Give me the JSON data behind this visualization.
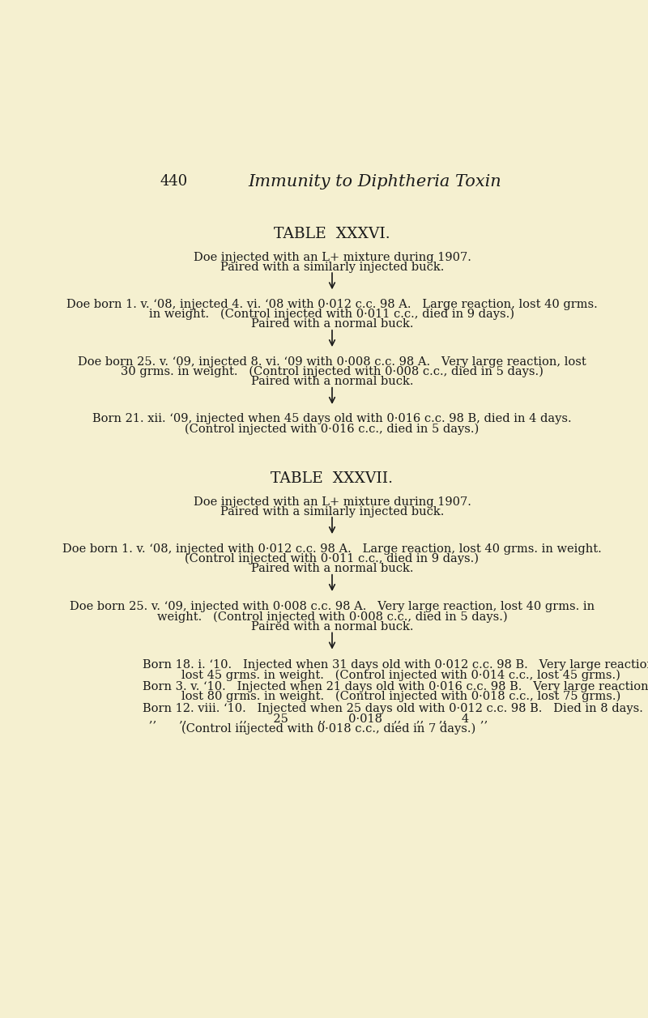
{
  "background_color": "#f5f0d0",
  "page_number": "440",
  "page_title": "Immunity to Diphtheria Toxin",
  "table36_title": "TABLE  XXXVI.",
  "table36_intro_line1": "Doe injected with an L+ mixture during 1907.",
  "table36_intro_line2": "Paired with a similarly injected buck.",
  "table36_block1_line1": "Doe born 1. v. ‘08, injected 4. vi. ‘08 with 0·012 c.c. 98 A.   Large reaction, lost 40 grms.",
  "table36_block1_line2": "in weight.   (Control injected with 0·011 c.c., died in 9 days.)",
  "table36_block1_line3": "Paired with a normal buck.",
  "table36_block2_line1": "Doe born 25. v. ‘09, injected 8. vi. ‘09 with 0·008 c.c. 98 A.   Very large reaction, lost",
  "table36_block2_line2": "30 grms. in weight.   (Control injected with 0·008 c.c., died in 5 days.)",
  "table36_block2_line3": "Paired with a normal buck.",
  "table36_block3_line1": "Born 21. xii. ‘09, injected when 45 days old with 0·016 c.c. 98 B, died in 4 days.",
  "table36_block3_line2": "(Control injected with 0·016 c.c., died in 5 days.)",
  "table37_title": "TABLE  XXXVII.",
  "table37_intro_line1": "Doe injected with an L+ mixture during 1907.",
  "table37_intro_line2": "Paired with a similarly injected buck.",
  "table37_block1_line1": "Doe born 1. v. ‘08, injected with 0·012 c.c. 98 A.   Large reaction, lost 40 grms. in weight.",
  "table37_block1_line2": "(Control injected with 0·011 c.c., died in 9 days.)",
  "table37_block1_line3": "Paired with a normal buck.",
  "table37_block2_line1": "Doe born 25. v. ‘09, injected with 0·008 c.c. 98 A.   Very large reaction, lost 40 grms. in",
  "table37_block2_line2": "weight.   (Control injected with 0·008 c.c., died in 5 days.)",
  "table37_block2_line3": "Paired with a normal buck.",
  "table37_block3_line1": "Born 18. i. ‘10.   Injected when 31 days old with 0·012 c.c. 98 B.   Very large reaction,",
  "table37_block3_line2": "lost 45 grms. in weight.   (Control injected with 0·014 c.c., lost 45 grms.)",
  "table37_block3_line3": "Born 3. v. ‘10.   Injected when 21 days old with 0·016 c.c. 98 B.   Very large reaction,",
  "table37_block3_line4": "lost 80 grms. in weight.   (Control injected with 0·018 c.c., lost 75 grms.)",
  "table37_block3_line5": "Born 12. viii. ‘10.   Injected when 25 days old with 0·012 c.c. 98 B.   Died in 8 days.",
  "table37_block3_line6": "„„          „„          „„          25          „„          0·018   „„     „„     „„     4   „„",
  "table37_block3_line7": "(Control injected with 0·018 c.c., died in 7 days.)",
  "text_color": "#1a1a1a",
  "font_size_body": 10.5,
  "font_size_table_title": 13.5
}
